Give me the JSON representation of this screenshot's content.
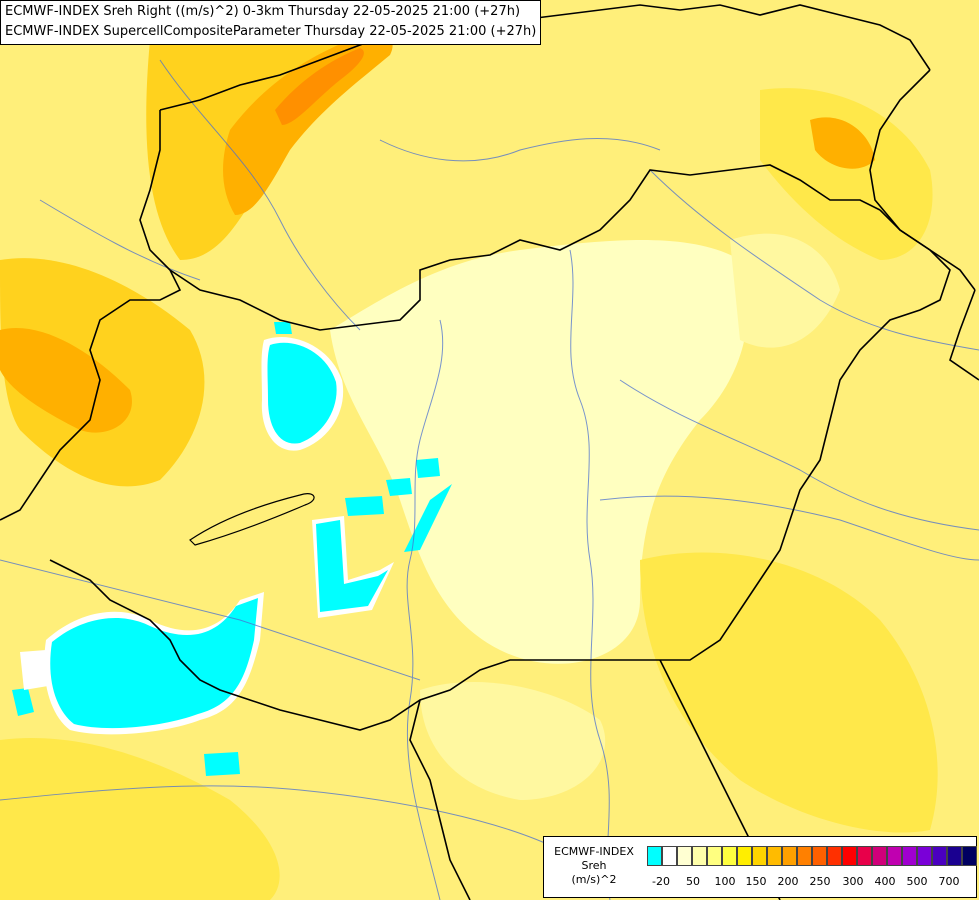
{
  "header": {
    "line1": "ECMWF-INDEX Sreh Right ((m/s)^2) 0-3km Thursday 22-05-2025 21:00 (+27h)",
    "line2": "ECMWF-INDEX SupercellCompositeParameter Thursday 22-05-2025 21:00 (+27h)"
  },
  "legend": {
    "title_line1": "ECMWF-INDEX",
    "title_line2": "Sreh",
    "title_line3": "(m/s)^2",
    "colors": [
      "#00ffff",
      "#ffffff",
      "#ffffd2",
      "#ffffaa",
      "#ffff80",
      "#ffff40",
      "#ffee00",
      "#ffd400",
      "#ffbb00",
      "#ffa000",
      "#ff8000",
      "#ff6000",
      "#ff3000",
      "#ff0000",
      "#e8004a",
      "#d0007a",
      "#c000b0",
      "#a000d0",
      "#7a00d8",
      "#4a00c0",
      "#1a0090",
      "#000060"
    ],
    "ticks": [
      "-20",
      "50",
      "100",
      "150",
      "200",
      "250",
      "300",
      "400",
      "500",
      "700"
    ]
  },
  "map_colors": {
    "base": "#ffef7a",
    "pale": "#ffffc0",
    "light": "#fff8a0",
    "mid": "#ffe84a",
    "strong": "#ffd21e",
    "orange": "#ffb000",
    "deep_orange": "#ff9000",
    "cyan": "#00ffff",
    "white": "#ffffff",
    "border": "#000000",
    "river": "#4a6fd0"
  }
}
